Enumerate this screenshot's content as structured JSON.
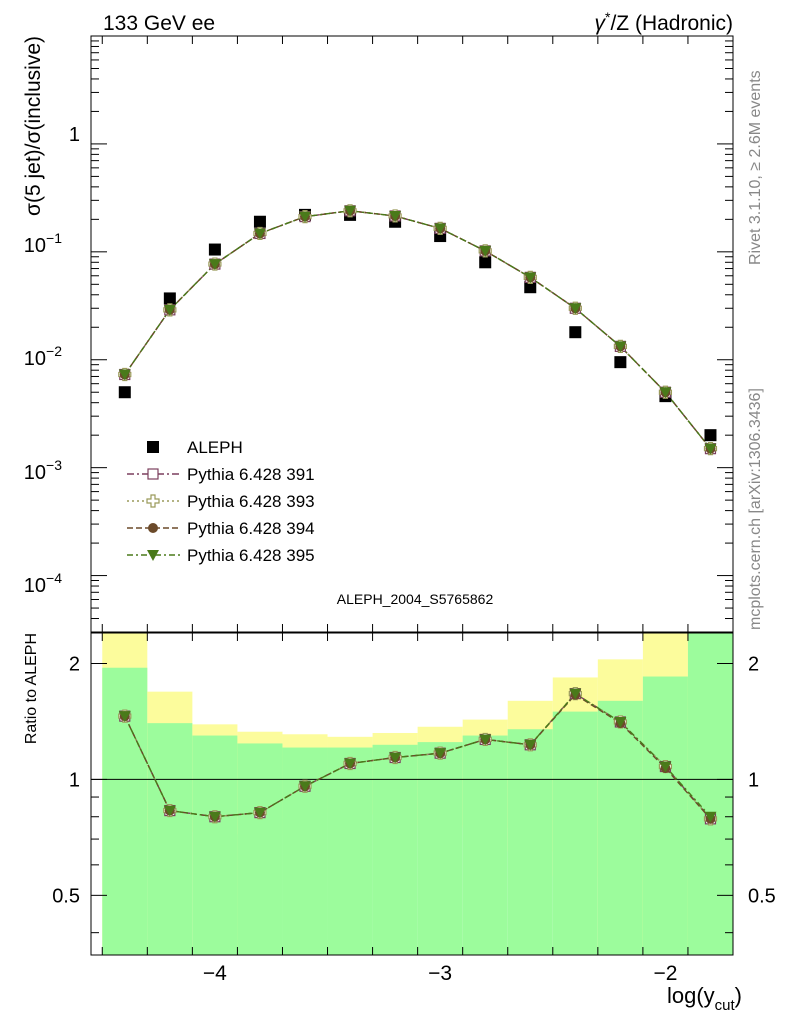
{
  "header": {
    "left": "133 GeV ee",
    "right_sym": "γ",
    "right_sup": "*",
    "right_rest": "/Z (Hadronic)"
  },
  "side_labels": {
    "rivet": "Rivet 3.1.10, ≥ 2.6M events",
    "mcplots": "mcplots.cern.ch [arXiv:1306.3436]"
  },
  "watermark": "ALEPH_2004_S5765862",
  "colors": {
    "band_green": "#9cfc9c",
    "band_yellow": "#fcfc9c",
    "data": "#000000",
    "s391": "#7b3f5e",
    "s393": "#9a9a5a",
    "s394": "#6b4a2a",
    "s395": "#4a7a1a"
  },
  "chart_data": [
    {
      "type": "scatter",
      "panel": "main",
      "ylabel": "σ(5 jet)/σ(inclusive)",
      "yscale": "log",
      "ylim": [
        3e-05,
        10
      ],
      "xlim": [
        -4.55,
        -1.7
      ],
      "y_tick_labels": {
        "e_m4_base": "10",
        "e_m4_exp": "−4",
        "e_m3_base": "10",
        "e_m3_exp": "−3",
        "e_m2_base": "10",
        "e_m2_exp": "−2",
        "e_m1_base": "10",
        "e_m1_exp": "−1",
        "e_0": "1"
      },
      "legend_placement": "lower-left",
      "x": [
        -4.4,
        -4.2,
        -4.0,
        -3.8,
        -3.6,
        -3.4,
        -3.2,
        -3.0,
        -2.8,
        -2.6,
        -2.4,
        -2.2,
        -2.0,
        -1.8
      ],
      "series": [
        {
          "name": "ALEPH",
          "marker": "square",
          "values": [
            0.005,
            0.037,
            0.105,
            0.19,
            0.22,
            0.22,
            0.19,
            0.14,
            0.08,
            0.047,
            0.018,
            0.0095,
            0.0046,
            0.002
          ]
        },
        {
          "name": "Pythia 6.428 391",
          "marker": "open-square",
          "values": [
            0.0073,
            0.029,
            0.077,
            0.148,
            0.212,
            0.24,
            0.215,
            0.165,
            0.102,
            0.058,
            0.03,
            0.0133,
            0.005,
            0.0015
          ]
        },
        {
          "name": "Pythia 6.428 393",
          "marker": "open-cross",
          "values": [
            0.0073,
            0.029,
            0.077,
            0.148,
            0.212,
            0.24,
            0.215,
            0.165,
            0.102,
            0.058,
            0.03,
            0.0133,
            0.005,
            0.0015
          ]
        },
        {
          "name": "Pythia 6.428 394",
          "marker": "circle",
          "values": [
            0.0073,
            0.029,
            0.077,
            0.148,
            0.212,
            0.24,
            0.215,
            0.165,
            0.102,
            0.058,
            0.03,
            0.0133,
            0.005,
            0.0015
          ]
        },
        {
          "name": "Pythia 6.428 395",
          "marker": "triangle-down",
          "values": [
            0.0073,
            0.029,
            0.077,
            0.148,
            0.212,
            0.24,
            0.215,
            0.165,
            0.102,
            0.058,
            0.03,
            0.0133,
            0.005,
            0.0015
          ]
        }
      ]
    },
    {
      "type": "line",
      "panel": "ratio",
      "ylabel": "Ratio to ALEPH",
      "xlabel_main": "log(y",
      "xlabel_sub": "cut",
      "xlabel_close": ")",
      "yscale": "log",
      "ylim": [
        0.35,
        2.4
      ],
      "xlim": [
        -4.55,
        -1.7
      ],
      "y_tick_labels": [
        "0.5",
        "1",
        "2"
      ],
      "y_ticks": [
        0.5,
        1,
        2
      ],
      "x_tick_labels": [
        "−4",
        "−3",
        "−2"
      ],
      "x_ticks": [
        -4,
        -3,
        -2
      ],
      "reference_line": 1,
      "bands": {
        "edges": [
          -4.5,
          -4.3,
          -4.1,
          -3.9,
          -3.7,
          -3.5,
          -3.3,
          -3.1,
          -2.9,
          -2.7,
          -2.5,
          -2.3,
          -2.1,
          -1.9,
          -1.7
        ],
        "green_lo": [
          0.35,
          0.35,
          0.35,
          0.35,
          0.35,
          0.35,
          0.35,
          0.35,
          0.35,
          0.35,
          0.35,
          0.35,
          0.35,
          0.35
        ],
        "green_hi": [
          1.95,
          1.4,
          1.3,
          1.24,
          1.21,
          1.21,
          1.23,
          1.25,
          1.3,
          1.35,
          1.5,
          1.6,
          1.85,
          2.4
        ],
        "yellow_lo": [
          0.35,
          0.73,
          0.35,
          0.72,
          0.79,
          0.82,
          0.81,
          0.76,
          0.75,
          0.65,
          0.56,
          0.35,
          0.35,
          0.35
        ],
        "yellow_hi": [
          2.4,
          1.69,
          1.39,
          1.33,
          1.31,
          1.29,
          1.32,
          1.37,
          1.43,
          1.6,
          1.84,
          2.05,
          2.4,
          2.4
        ]
      },
      "x": [
        -4.4,
        -4.2,
        -4.0,
        -3.8,
        -3.6,
        -3.4,
        -3.2,
        -3.0,
        -2.8,
        -2.6,
        -2.4,
        -2.2,
        -2.0,
        -1.8
      ],
      "series": [
        {
          "name": "Pythia 6.428 391",
          "values": [
            1.46,
            0.83,
            0.8,
            0.82,
            0.96,
            1.1,
            1.14,
            1.17,
            1.27,
            1.23,
            1.67,
            1.41,
            1.08,
            0.79
          ]
        },
        {
          "name": "Pythia 6.428 393",
          "values": [
            1.46,
            0.83,
            0.8,
            0.82,
            0.96,
            1.1,
            1.14,
            1.17,
            1.27,
            1.23,
            1.67,
            1.41,
            1.08,
            0.79
          ]
        },
        {
          "name": "Pythia 6.428 394",
          "values": [
            1.46,
            0.83,
            0.8,
            0.82,
            0.96,
            1.1,
            1.14,
            1.17,
            1.27,
            1.23,
            1.66,
            1.4,
            1.07,
            0.79
          ]
        },
        {
          "name": "Pythia 6.428 395",
          "values": [
            1.46,
            0.83,
            0.8,
            0.82,
            0.96,
            1.1,
            1.14,
            1.17,
            1.27,
            1.23,
            1.67,
            1.41,
            1.08,
            0.8
          ]
        }
      ]
    }
  ]
}
